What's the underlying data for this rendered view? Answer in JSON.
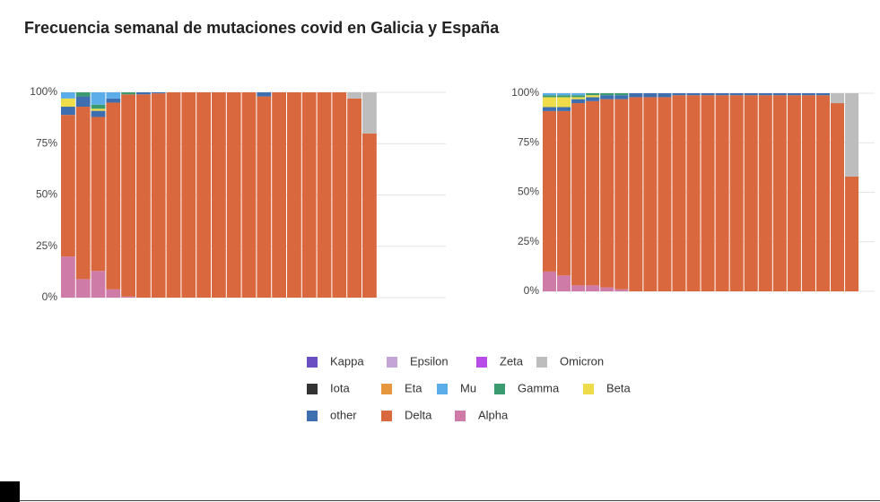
{
  "title": "Frecuencia semanal de mutaciones covid en Galicia y España",
  "chart_data": [
    {
      "type": "bar",
      "stacked": true,
      "grid": true,
      "ylim": [
        0,
        100
      ],
      "yticks": [
        {
          "value": 0,
          "label": "0%"
        },
        {
          "value": 25,
          "label": "25%"
        },
        {
          "value": 50,
          "label": "50%"
        },
        {
          "value": 75,
          "label": "75%"
        },
        {
          "value": 100,
          "label": "100%"
        }
      ],
      "series": [
        {
          "name": "Kappa",
          "color": "#6a4fc2",
          "values": [
            0,
            0,
            0,
            0,
            0,
            0,
            0,
            0,
            0,
            0,
            0,
            0,
            0,
            0,
            0,
            0,
            0,
            0,
            0,
            0,
            0
          ]
        },
        {
          "name": "Epsilon",
          "color": "#c4a3d6",
          "values": [
            0,
            0,
            0,
            0,
            0,
            0,
            0,
            0,
            0,
            0,
            0,
            0,
            0,
            0,
            0,
            0,
            0,
            0,
            0,
            0,
            0
          ]
        },
        {
          "name": "Zeta",
          "color": "#b74ce8",
          "values": [
            0,
            0,
            0,
            0,
            0,
            0,
            0,
            0,
            0,
            0,
            0,
            0,
            0,
            0,
            0,
            0,
            0,
            0,
            0,
            0,
            0
          ]
        },
        {
          "name": "Omicron",
          "color": "#bdbdbd",
          "values": [
            0,
            0,
            0,
            0,
            0,
            0,
            0,
            0,
            0,
            0,
            0,
            0,
            0,
            0,
            0,
            0,
            0,
            0,
            0,
            3,
            20
          ]
        },
        {
          "name": "Iota",
          "color": "#333333",
          "values": [
            0,
            0,
            0,
            0,
            0,
            0,
            0,
            0,
            0,
            0,
            0,
            0,
            0,
            0,
            0,
            0,
            0,
            0,
            0,
            0,
            0
          ]
        },
        {
          "name": "Eta",
          "color": "#e6963c",
          "values": [
            0,
            0,
            0,
            0,
            0,
            0,
            0,
            0,
            0,
            0,
            0,
            0,
            0,
            0,
            0,
            0,
            0,
            0,
            0,
            0,
            0
          ]
        },
        {
          "name": "Mu",
          "color": "#5aade8",
          "values": [
            3,
            0,
            6,
            3,
            0,
            0,
            0,
            0,
            0,
            0,
            0,
            0,
            0,
            0,
            0,
            0,
            0,
            0,
            0,
            0,
            0
          ]
        },
        {
          "name": "Gamma",
          "color": "#3a9a70",
          "values": [
            0,
            2,
            2,
            0,
            1,
            0,
            0,
            0,
            0,
            0,
            0,
            0,
            0,
            0,
            0,
            0,
            0,
            0,
            0,
            0,
            0
          ]
        },
        {
          "name": "Beta",
          "color": "#eedc4a",
          "values": [
            4,
            0,
            1,
            0,
            0,
            0,
            0,
            0,
            0,
            0,
            0,
            0,
            0,
            0,
            0,
            0,
            0,
            0,
            0,
            0,
            0
          ]
        },
        {
          "name": "other",
          "color": "#3d6fb0",
          "values": [
            4,
            5,
            3,
            2,
            0,
            1,
            0.5,
            0,
            0,
            0,
            0,
            0,
            0,
            2,
            0,
            0,
            0,
            0,
            0,
            0,
            0
          ]
        },
        {
          "name": "Delta",
          "color": "#d9683e",
          "values": [
            69,
            84,
            75,
            91,
            98.5,
            99,
            99.5,
            100,
            100,
            100,
            100,
            100,
            100,
            98,
            100,
            100,
            100,
            100,
            100,
            97,
            80
          ]
        },
        {
          "name": "Alpha",
          "color": "#cf7ba8",
          "values": [
            20,
            9,
            13,
            4,
            0.5,
            0,
            0,
            0,
            0,
            0,
            0,
            0,
            0,
            0,
            0,
            0,
            0,
            0,
            0,
            0,
            0
          ]
        }
      ]
    },
    {
      "type": "bar",
      "stacked": true,
      "grid": true,
      "ylim": [
        0,
        100
      ],
      "yticks": [
        {
          "value": 0,
          "label": "0%"
        },
        {
          "value": 25,
          "label": "25%"
        },
        {
          "value": 50,
          "label": "50%"
        },
        {
          "value": 75,
          "label": "75%"
        },
        {
          "value": 100,
          "label": "100%"
        }
      ],
      "series": [
        {
          "color": "#6a4fc2",
          "values": [
            0,
            0,
            0,
            0,
            0,
            0,
            0,
            0,
            0,
            0,
            0,
            0,
            0,
            0,
            0,
            0,
            0,
            0,
            0,
            0,
            0,
            0
          ]
        },
        {
          "color": "#c4a3d6",
          "values": [
            0,
            0,
            0,
            0,
            0,
            0,
            0,
            0,
            0,
            0,
            0,
            0,
            0,
            0,
            0,
            0,
            0,
            0,
            0,
            0,
            0,
            0
          ]
        },
        {
          "color": "#b74ce8",
          "values": [
            0,
            0,
            0,
            0,
            0,
            0,
            0,
            0,
            0,
            0,
            0,
            0,
            0,
            0,
            0,
            0,
            0,
            0,
            0,
            0,
            0,
            0
          ]
        },
        {
          "color": "#bdbdbd",
          "values": [
            0,
            0,
            0,
            0,
            0,
            0,
            0,
            0,
            0,
            0,
            0,
            0,
            0,
            0,
            0,
            0,
            0,
            0,
            0,
            0,
            5,
            42
          ]
        },
        {
          "color": "#333333",
          "values": [
            0,
            0,
            0,
            0,
            0,
            0,
            0,
            0,
            0,
            0,
            0,
            0,
            0,
            0,
            0,
            0,
            0,
            0,
            0,
            0,
            0,
            0
          ]
        },
        {
          "color": "#e6963c",
          "values": [
            0,
            0,
            0,
            0,
            0,
            0,
            0,
            0,
            0,
            0,
            0,
            0,
            0,
            0,
            0,
            0,
            0,
            0,
            0,
            0,
            0,
            0
          ]
        },
        {
          "color": "#5aade8",
          "values": [
            1,
            1,
            1,
            0,
            0,
            0,
            0,
            0,
            0,
            0,
            0,
            0,
            0,
            0,
            0,
            0,
            0,
            0,
            0,
            0,
            0,
            0
          ]
        },
        {
          "color": "#3a9a70",
          "values": [
            1,
            1,
            1,
            1,
            1,
            1,
            0,
            0,
            0,
            0,
            0,
            0,
            0,
            0,
            0,
            0,
            0,
            0,
            0,
            0,
            0,
            0
          ]
        },
        {
          "color": "#eedc4a",
          "values": [
            5,
            5,
            1,
            1,
            0,
            0,
            0,
            0,
            0,
            0,
            0,
            0,
            0,
            0,
            0,
            0,
            0,
            0,
            0,
            0,
            0,
            0
          ]
        },
        {
          "color": "#3d6fb0",
          "values": [
            2,
            2,
            2,
            2,
            2,
            2,
            2,
            2,
            2,
            1,
            1,
            1,
            1,
            1,
            1,
            1,
            1,
            1,
            1,
            1,
            0,
            0
          ]
        },
        {
          "color": "#d9683e",
          "values": [
            81,
            83,
            92,
            93,
            95,
            96,
            98,
            98,
            98,
            99,
            99,
            99,
            99,
            99,
            99,
            99,
            99,
            99,
            99,
            99,
            95,
            58
          ]
        },
        {
          "color": "#cf7ba8",
          "values": [
            10,
            8,
            3,
            3,
            2,
            1,
            0,
            0,
            0,
            0,
            0,
            0,
            0,
            0,
            0,
            0,
            0,
            0,
            0,
            0,
            0,
            0
          ]
        }
      ]
    }
  ]
}
